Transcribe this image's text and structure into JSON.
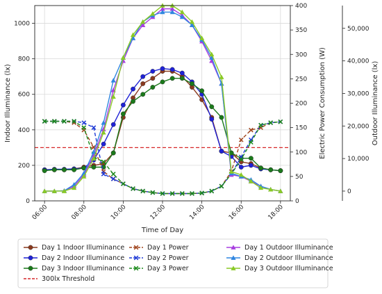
{
  "chart_data": {
    "type": "line",
    "x": [
      6,
      6.5,
      7,
      7.5,
      8,
      8.5,
      9,
      9.5,
      10,
      10.5,
      11,
      11.5,
      12,
      12.5,
      13,
      13.5,
      14,
      14.5,
      15,
      15.5,
      16,
      16.5,
      17,
      17.5,
      18
    ],
    "x_ticks": [
      6,
      8,
      10,
      12,
      14,
      16,
      18
    ],
    "x_tick_labels": [
      "06:00",
      "08:00",
      "10:00",
      "12:00",
      "14:00",
      "16:00",
      "18:00"
    ],
    "xlabel": "Time of Day",
    "xlim": [
      5.5,
      18.5
    ],
    "axes": {
      "left": {
        "label": "Indoor Illuminance (lx)",
        "ylim": [
          0,
          1100
        ],
        "ticks": [
          0,
          200,
          400,
          600,
          800,
          1000
        ],
        "tick_labels": [
          "0",
          "200",
          "400",
          "600",
          "800",
          "1000"
        ]
      },
      "right1": {
        "label": "Electric Power Consumption (W)",
        "ylim": [
          0,
          400
        ],
        "ticks": [
          0,
          50,
          100,
          150,
          200,
          250,
          300,
          350,
          400
        ],
        "tick_labels": [
          "0",
          "50",
          "100",
          "150",
          "200",
          "250",
          "300",
          "350",
          "400"
        ]
      },
      "right2": {
        "label": "Outdoor Illuminance (lx)",
        "ylim": [
          -3000,
          57000
        ],
        "ticks": [
          0,
          10000,
          20000,
          30000,
          40000,
          50000
        ],
        "tick_labels": [
          "0",
          "10,000",
          "20,000",
          "30,000",
          "40,000",
          "50,000"
        ]
      }
    },
    "grid": true,
    "legend_placement": "bottom",
    "series": [
      {
        "name": "Day 1 Indoor Illuminance",
        "axis": "left",
        "color": "#8b3a1f",
        "style": "solid",
        "marker": "circle",
        "values": [
          175,
          175,
          175,
          180,
          190,
          200,
          210,
          270,
          470,
          580,
          660,
          690,
          730,
          730,
          700,
          640,
          570,
          470,
          280,
          270,
          220,
          210,
          185,
          175,
          170
        ]
      },
      {
        "name": "Day 2 Indoor Illuminance",
        "axis": "left",
        "color": "#1f22d6",
        "style": "solid",
        "marker": "circle",
        "values": [
          175,
          178,
          178,
          180,
          185,
          230,
          320,
          430,
          540,
          630,
          700,
          730,
          745,
          740,
          720,
          670,
          600,
          460,
          280,
          250,
          190,
          200,
          180,
          175,
          170
        ]
      },
      {
        "name": "Day 3 Indoor Illuminance",
        "axis": "left",
        "color": "#1b7a1b",
        "style": "solid",
        "marker": "circle",
        "values": [
          170,
          175,
          175,
          175,
          185,
          190,
          190,
          270,
          490,
          560,
          600,
          640,
          670,
          690,
          690,
          660,
          620,
          530,
          470,
          270,
          240,
          240,
          185,
          175,
          170
        ]
      },
      {
        "name": "Day 1 Power",
        "axis": "right1",
        "color": "#a0451e",
        "style": "dashed",
        "marker": "x",
        "values": [
          163,
          163,
          163,
          160,
          145,
          110,
          60,
          45,
          35,
          25,
          20,
          17,
          15,
          15,
          15,
          15,
          16,
          20,
          30,
          60,
          125,
          145,
          150,
          160,
          162
        ]
      },
      {
        "name": "Day 2 Power",
        "axis": "right1",
        "color": "#1f3ad6",
        "style": "dashed",
        "marker": "x",
        "values": [
          163,
          163,
          163,
          163,
          160,
          150,
          55,
          45,
          35,
          25,
          20,
          17,
          15,
          15,
          15,
          15,
          16,
          20,
          30,
          55,
          90,
          125,
          155,
          160,
          162
        ]
      },
      {
        "name": "Day 3 Power",
        "axis": "right1",
        "color": "#1b8a1b",
        "style": "dashed",
        "marker": "x",
        "values": [
          163,
          163,
          163,
          163,
          150,
          90,
          80,
          55,
          35,
          25,
          20,
          17,
          15,
          15,
          15,
          15,
          16,
          20,
          30,
          55,
          85,
          120,
          155,
          160,
          162
        ]
      },
      {
        "name": "Day 1 Outdoor Illuminance",
        "axis": "right2",
        "color": "#a83ee0",
        "style": "solid",
        "marker": "triangle",
        "values": [
          0,
          0,
          100,
          1500,
          5000,
          11000,
          19000,
          31000,
          40000,
          47000,
          51000,
          53500,
          56000,
          56000,
          54000,
          51000,
          46000,
          40000,
          33000,
          5000,
          4500,
          3000,
          1500,
          500,
          0
        ]
      },
      {
        "name": "Day 2 Outdoor Illuminance",
        "axis": "right2",
        "color": "#2f86e0",
        "style": "solid",
        "marker": "triangle",
        "values": [
          0,
          0,
          100,
          2000,
          5500,
          12000,
          21000,
          34000,
          41000,
          47000,
          52000,
          54000,
          55000,
          55000,
          53500,
          51000,
          46500,
          41000,
          33000,
          5500,
          4500,
          3500,
          1500,
          500,
          0
        ]
      },
      {
        "name": "Day 3 Outdoor Illuminance",
        "axis": "right2",
        "color": "#8ac926",
        "style": "solid",
        "marker": "triangle",
        "values": [
          0,
          0,
          0,
          1000,
          4500,
          10000,
          18000,
          29000,
          41000,
          48000,
          52000,
          54500,
          57000,
          57000,
          55000,
          52000,
          47000,
          42000,
          35000,
          6000,
          5000,
          3000,
          1000,
          500,
          0
        ]
      }
    ],
    "threshold": {
      "name": "300lx Threshold",
      "axis": "left",
      "value": 300,
      "color": "#d62728",
      "style": "dashed"
    },
    "legend": [
      [
        "Day 1 Indoor Illuminance",
        "Day 2 Indoor Illuminance",
        "Day 3 Indoor Illuminance",
        "300lx Threshold"
      ],
      [
        "Day 1 Power",
        "Day 2 Power",
        "Day 3 Power"
      ],
      [
        "Day 1 Outdoor Illuminance",
        "Day 2 Outdoor Illuminance",
        "Day 3 Outdoor Illuminance"
      ]
    ]
  }
}
